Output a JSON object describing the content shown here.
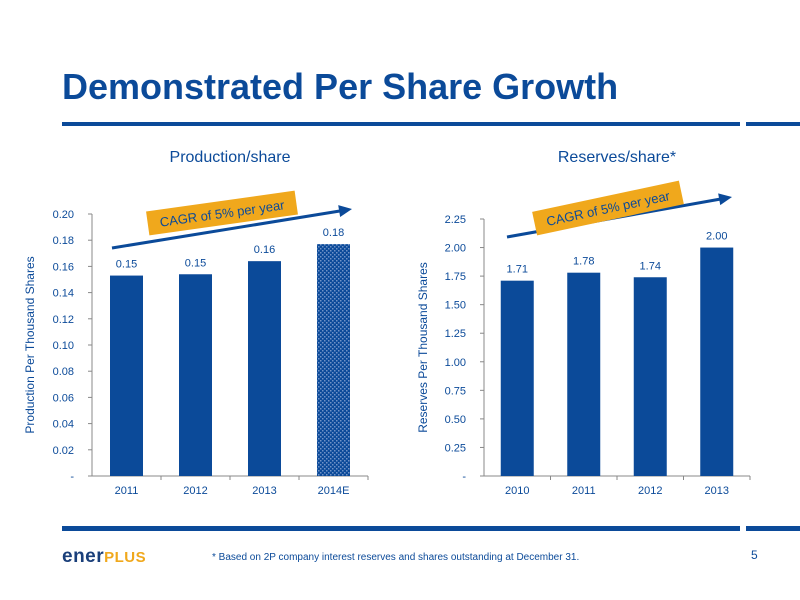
{
  "slide": {
    "title": "Demonstrated Per Share Growth",
    "footnote": "* Based on 2P company interest reserves and shares outstanding at December 31.",
    "page_number": "5",
    "logo": {
      "part1": "ener",
      "part2": "PLUS"
    }
  },
  "colors": {
    "primary": "#0b4a99",
    "accent": "#f0a81c",
    "bar": "#0b4a99"
  },
  "chart_data": [
    {
      "type": "bar",
      "title": "Production/share",
      "ylabel": "Production Per Thousand Shares",
      "xlabel": "",
      "categories": [
        "2011",
        "2012",
        "2013",
        "2014E"
      ],
      "values": [
        0.153,
        0.154,
        0.164,
        0.177
      ],
      "data_labels": [
        "0.15",
        "0.15",
        "0.16",
        "0.18"
      ],
      "ylim": [
        0,
        0.2
      ],
      "yticks": [
        0,
        0.02,
        0.04,
        0.06,
        0.08,
        0.1,
        0.12,
        0.14,
        0.16,
        0.18,
        0.2
      ],
      "ytick_labels": [
        "-",
        "0.02",
        "0.04",
        "0.06",
        "0.08",
        "0.10",
        "0.12",
        "0.14",
        "0.16",
        "0.18",
        "0.20"
      ],
      "estimate_index": 3,
      "annotation": "CAGR of 5% per year",
      "grid": false
    },
    {
      "type": "bar",
      "title": "Reserves/share*",
      "ylabel": "Reserves Per Thousand Shares",
      "xlabel": "",
      "categories": [
        "2010",
        "2011",
        "2012",
        "2013"
      ],
      "values": [
        1.71,
        1.78,
        1.74,
        2.0
      ],
      "data_labels": [
        "1.71",
        "1.78",
        "1.74",
        "2.00"
      ],
      "ylim": [
        0,
        2.25
      ],
      "yticks": [
        0,
        0.25,
        0.5,
        0.75,
        1.0,
        1.25,
        1.5,
        1.75,
        2.0,
        2.25
      ],
      "ytick_labels": [
        "-",
        "0.25",
        "0.50",
        "0.75",
        "1.00",
        "1.25",
        "1.50",
        "1.75",
        "2.00",
        "2.25"
      ],
      "annotation": "CAGR of 5% per year",
      "grid": false
    }
  ]
}
